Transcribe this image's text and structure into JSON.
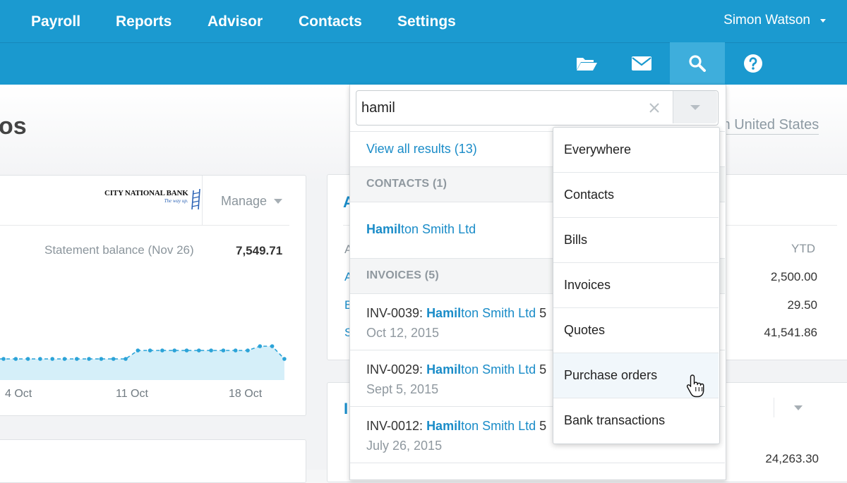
{
  "header": {
    "user_name": "Simon Watson"
  },
  "nav": {
    "items": [
      {
        "label": "Payroll"
      },
      {
        "label": "Reports"
      },
      {
        "label": "Advisor"
      },
      {
        "label": "Contacts"
      },
      {
        "label": "Settings"
      }
    ],
    "icons": [
      "folder-icon",
      "mail-icon",
      "search-icon",
      "help-icon"
    ]
  },
  "page": {
    "title_partial": "os",
    "org_partial": "m United States"
  },
  "bank": {
    "logo_text": "CITY NATIONAL BANK",
    "logo_tagline": "The way up.",
    "manage_label": "Manage",
    "statement_label": "Statement balance (Nov 26)",
    "statement_value": "7,549.71",
    "x_labels": [
      "4 Oct",
      "11 Oct",
      "18 Oct"
    ]
  },
  "chart_data": {
    "type": "area",
    "title": "",
    "xlabel": "",
    "ylabel": "",
    "x_tick_labels": [
      "4 Oct",
      "11 Oct",
      "18 Oct"
    ],
    "series": [
      {
        "values": [
          3,
          3,
          3,
          3,
          3,
          3,
          3,
          3,
          3,
          3,
          3,
          5,
          5,
          5,
          5,
          5,
          5,
          5,
          5,
          5,
          5,
          6,
          6,
          3
        ]
      }
    ],
    "ylim": [
      0,
      10
    ],
    "grid": false,
    "colors": {
      "line": "#2ba3d8",
      "fill": "#d5eff9"
    }
  },
  "accounts": {
    "header_partial": "A",
    "col_header": "YTD",
    "row_letters": [
      "A",
      "A",
      "B",
      "S"
    ],
    "values": [
      "2,500.00",
      "29.50",
      "41,541.86"
    ],
    "panel2_header_partial": "I",
    "panel2_value": "24,263.30"
  },
  "search": {
    "query": "hamil",
    "view_all": "View all results (13)",
    "contacts_header": "CONTACTS (1)",
    "contact": {
      "highlight": "Hamil",
      "rest": "ton Smith Ltd"
    },
    "invoices_header": "INVOICES (5)",
    "invoices": [
      {
        "number": "INV-0039: ",
        "highlight": "Hamil",
        "rest": "ton Smith Ltd",
        "trail": " 5",
        "date": "Oct 12, 2015"
      },
      {
        "number": "INV-0029: ",
        "highlight": "Hamil",
        "rest": "ton Smith Ltd",
        "trail": " 5",
        "date": "Sept 5, 2015"
      },
      {
        "number": "INV-0012: ",
        "highlight": "Hamil",
        "rest": "ton Smith Ltd",
        "trail": " 5",
        "date": "July 26, 2015"
      }
    ]
  },
  "scope_menu": {
    "items": [
      {
        "label": "Everywhere"
      },
      {
        "label": "Contacts"
      },
      {
        "label": "Bills"
      },
      {
        "label": "Invoices"
      },
      {
        "label": "Quotes"
      },
      {
        "label": "Purchase orders"
      },
      {
        "label": "Bank transactions"
      }
    ],
    "hovered": "Purchase orders"
  },
  "colors": {
    "brand_blue": "#1b9ad0",
    "nav_active": "#3eaedc",
    "link_blue": "#1a8cc8"
  }
}
